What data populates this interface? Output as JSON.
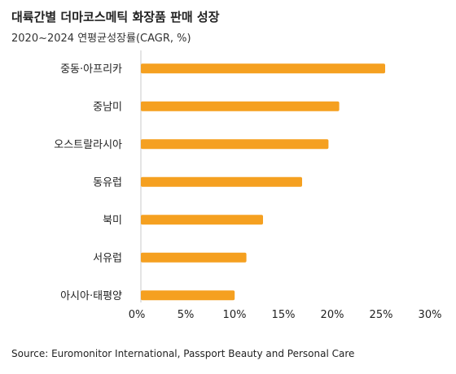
{
  "chart_data": {
    "type": "bar",
    "orientation": "horizontal",
    "title": "대륙간별 더마코스메틱 화장품 판매 성장",
    "subtitle": "2020~2024 연평균성장률(CAGR, %)",
    "categories": [
      "중동·아프리카",
      "중남미",
      "오스트랄라시아",
      "동유럽",
      "북미",
      "서유럽",
      "아시아·태평양"
    ],
    "values": [
      25,
      20.3,
      19.2,
      16.5,
      12.5,
      10.8,
      9.6
    ],
    "x_ticks": [
      "0%",
      "5%",
      "10%",
      "15%",
      "20%",
      "25%",
      "30%"
    ],
    "xlim": [
      0,
      30
    ],
    "grid": false,
    "legend": false,
    "bar_color": "#F5A020",
    "axis_color": "#c8c8c8"
  },
  "source": "Source: Euromonitor International, Passport Beauty and Personal Care"
}
